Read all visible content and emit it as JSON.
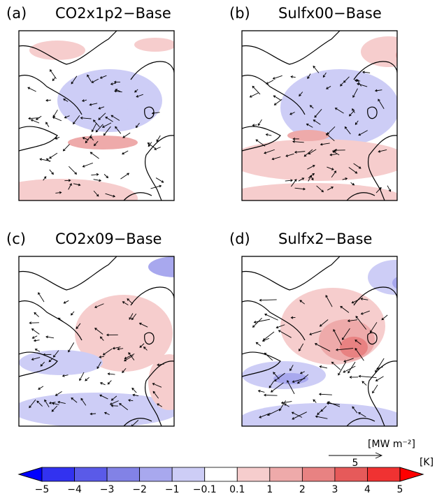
{
  "panels": [
    {
      "label": "(a)",
      "title": "CO2x1p2−Base"
    },
    {
      "label": "(b)",
      "title": "Sulfx00−Base"
    },
    {
      "label": "(c)",
      "title": "CO2x09−Base"
    },
    {
      "label": "(d)",
      "title": "Sulfx2−Base"
    }
  ],
  "reference_vector": {
    "unit": "[MW m⁻²]",
    "magnitude": "5"
  },
  "colorbar": {
    "unit": "[K]",
    "labels": [
      "−5",
      "−4",
      "−3",
      "−2",
      "−1",
      "−0.1",
      "0.1",
      "1",
      "2",
      "3",
      "4",
      "5"
    ],
    "colors": [
      "#0000ff",
      "#3232f0",
      "#5a5ae8",
      "#8282e6",
      "#a8a8ee",
      "#cdcdf6",
      "#ffffff",
      "#f6cdcd",
      "#eeaaaa",
      "#e88282",
      "#e65a5a",
      "#f03232",
      "#ff0000"
    ]
  }
}
